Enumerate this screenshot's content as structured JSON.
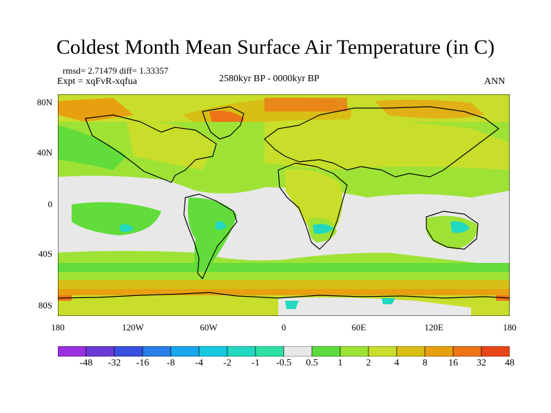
{
  "title": "Coldest Month Mean Surface Air Temperature (in C)",
  "stats": "rmsd= 2.71479 diff= 1.33357",
  "expt": "Expt = xqFvR-xqfua",
  "period": "2580kyr BP - 0000kyr BP",
  "season": "ANN",
  "y_ticks": [
    "80N",
    "40N",
    "0",
    "40S",
    "80S"
  ],
  "x_ticks": [
    "180",
    "120W",
    "60W",
    "0",
    "60E",
    "120E",
    "180"
  ],
  "colorbar": {
    "labels": [
      "-48",
      "-32",
      "-16",
      "-8",
      "-4",
      "-2",
      "-1",
      "-0.5",
      "0.5",
      "1",
      "2",
      "4",
      "8",
      "16",
      "32",
      "48"
    ],
    "colors": [
      "#9b30e0",
      "#6a3ad8",
      "#3a50e0",
      "#2a7ee6",
      "#1aa6ec",
      "#18c8e0",
      "#22d8c0",
      "#2de0a6",
      "#e8e8e8",
      "#5cdc3e",
      "#9ee236",
      "#c8de2a",
      "#d8be14",
      "#e8a010",
      "#ee7418",
      "#e8461a"
    ]
  },
  "map_colors": {
    "land_cold": "#62dc3a",
    "mid": "#9ee236",
    "warm": "#c8de2a",
    "warmer": "#d8be14",
    "hot": "#e8a010",
    "hotter": "#ee7418",
    "neutral": "#e8e8e8",
    "cool": "#22d8c0",
    "cold": "#18c8e0"
  }
}
